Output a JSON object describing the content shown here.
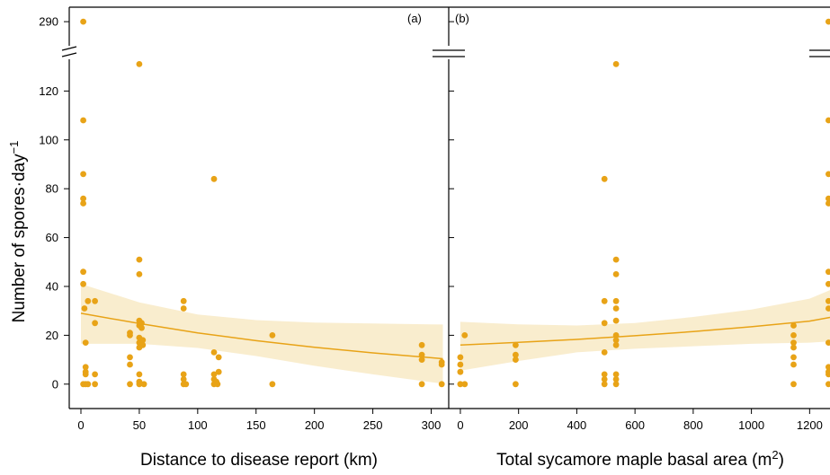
{
  "chart_data": {
    "type": "scatter",
    "ylabel": "Number of spores·day",
    "ylabel_sup": "−1",
    "y_ticks": [
      0,
      20,
      40,
      60,
      80,
      100,
      120
    ],
    "y_break_tick": 290,
    "ylim_lower": [
      -10,
      133
    ],
    "ylim_upper": [
      285,
      293
    ],
    "colors": {
      "points": "#E8A317",
      "band": "#F7E7BE"
    },
    "panels": [
      {
        "panel_label": "(a)",
        "xlabel": "Distance to disease report (km)",
        "xlabel_sup": "",
        "xlabel_suffix": "",
        "x_ticks": [
          0,
          50,
          100,
          150,
          200,
          250,
          300
        ],
        "xlim": [
          -10,
          315
        ],
        "points": [
          [
            2,
            290
          ],
          [
            2,
            108
          ],
          [
            2,
            86
          ],
          [
            2,
            76
          ],
          [
            2,
            74
          ],
          [
            2,
            46
          ],
          [
            2,
            41
          ],
          [
            3,
            31
          ],
          [
            4,
            17
          ],
          [
            4,
            7
          ],
          [
            4,
            5
          ],
          [
            4,
            4
          ],
          [
            4,
            0
          ],
          [
            2,
            0
          ],
          [
            6,
            34
          ],
          [
            6,
            0
          ],
          [
            12,
            34
          ],
          [
            12,
            25
          ],
          [
            12,
            4
          ],
          [
            12,
            0
          ],
          [
            42,
            21
          ],
          [
            42,
            20
          ],
          [
            42,
            11
          ],
          [
            42,
            8
          ],
          [
            42,
            0
          ],
          [
            50,
            131
          ],
          [
            50,
            51
          ],
          [
            50,
            45
          ],
          [
            50,
            26
          ],
          [
            50,
            24
          ],
          [
            50,
            19
          ],
          [
            50,
            17
          ],
          [
            50,
            15
          ],
          [
            50,
            4
          ],
          [
            50,
            1
          ],
          [
            50,
            0
          ],
          [
            52,
            25
          ],
          [
            52,
            23
          ],
          [
            53,
            18
          ],
          [
            53,
            16
          ],
          [
            54,
            0
          ],
          [
            88,
            34
          ],
          [
            88,
            31
          ],
          [
            88,
            4
          ],
          [
            88,
            2
          ],
          [
            88,
            0
          ],
          [
            90,
            0
          ],
          [
            114,
            84
          ],
          [
            114,
            13
          ],
          [
            114,
            4
          ],
          [
            114,
            2
          ],
          [
            114,
            0
          ],
          [
            116,
            1
          ],
          [
            117,
            0
          ],
          [
            118,
            11
          ],
          [
            118,
            5
          ],
          [
            164,
            20
          ],
          [
            164,
            0
          ],
          [
            292,
            16
          ],
          [
            292,
            12
          ],
          [
            292,
            10
          ],
          [
            292,
            0
          ],
          [
            309,
            9
          ],
          [
            309,
            8
          ],
          [
            309,
            0
          ]
        ],
        "fit": {
          "x": [
            0,
            50,
            100,
            150,
            200,
            250,
            300,
            310
          ],
          "y": [
            29,
            24.8,
            21.0,
            17.8,
            15.1,
            12.8,
            10.8,
            10.4
          ]
        },
        "band": {
          "x": [
            0,
            50,
            100,
            150,
            200,
            250,
            300,
            310
          ],
          "lo": [
            16.5,
            16.5,
            14.8,
            11.5,
            7.5,
            4.0,
            0.8,
            0.2
          ],
          "hi": [
            41,
            33.5,
            28.5,
            26.2,
            25.2,
            24.8,
            24.5,
            24.4
          ]
        }
      },
      {
        "panel_label": "(b)",
        "xlabel": "Total sycamore maple basal area (m",
        "xlabel_sup": "2",
        "xlabel_suffix": ")",
        "x_ticks": [
          0,
          200,
          400,
          600,
          800,
          1000,
          1200
        ],
        "xlim": [
          -40,
          1270
        ],
        "points": [
          [
            0,
            11
          ],
          [
            0,
            8
          ],
          [
            0,
            5
          ],
          [
            0,
            0
          ],
          [
            15,
            20
          ],
          [
            15,
            0
          ],
          [
            190,
            16
          ],
          [
            190,
            12
          ],
          [
            190,
            10
          ],
          [
            190,
            0
          ],
          [
            495,
            84
          ],
          [
            495,
            34
          ],
          [
            495,
            25
          ],
          [
            495,
            13
          ],
          [
            495,
            4
          ],
          [
            495,
            2
          ],
          [
            495,
            0
          ],
          [
            535,
            131
          ],
          [
            535,
            51
          ],
          [
            535,
            45
          ],
          [
            535,
            34
          ],
          [
            535,
            31
          ],
          [
            535,
            26
          ],
          [
            535,
            20
          ],
          [
            535,
            18
          ],
          [
            535,
            16
          ],
          [
            535,
            4
          ],
          [
            535,
            2
          ],
          [
            535,
            0
          ],
          [
            1145,
            24
          ],
          [
            1145,
            20
          ],
          [
            1145,
            17
          ],
          [
            1145,
            15
          ],
          [
            1145,
            11
          ],
          [
            1145,
            8
          ],
          [
            1145,
            0
          ],
          [
            1265,
            290
          ],
          [
            1265,
            108
          ],
          [
            1265,
            86
          ],
          [
            1265,
            76
          ],
          [
            1265,
            74
          ],
          [
            1265,
            46
          ],
          [
            1265,
            41
          ],
          [
            1265,
            34
          ],
          [
            1265,
            31
          ],
          [
            1265,
            17
          ],
          [
            1265,
            7
          ],
          [
            1265,
            5
          ],
          [
            1265,
            4
          ],
          [
            1265,
            0
          ]
        ],
        "fit": {
          "x": [
            0,
            200,
            400,
            600,
            800,
            1000,
            1200,
            1270
          ],
          "y": [
            16,
            17.1,
            18.3,
            19.8,
            21.5,
            23.5,
            25.8,
            27.3
          ]
        },
        "band": {
          "x": [
            0,
            200,
            400,
            600,
            800,
            1000,
            1200,
            1270
          ],
          "lo": [
            5.5,
            9.5,
            13,
            14.5,
            15.5,
            16.5,
            17,
            17.5
          ],
          "hi": [
            25.5,
            24.5,
            24,
            25,
            27.5,
            30.5,
            35,
            38.5
          ]
        }
      }
    ]
  }
}
